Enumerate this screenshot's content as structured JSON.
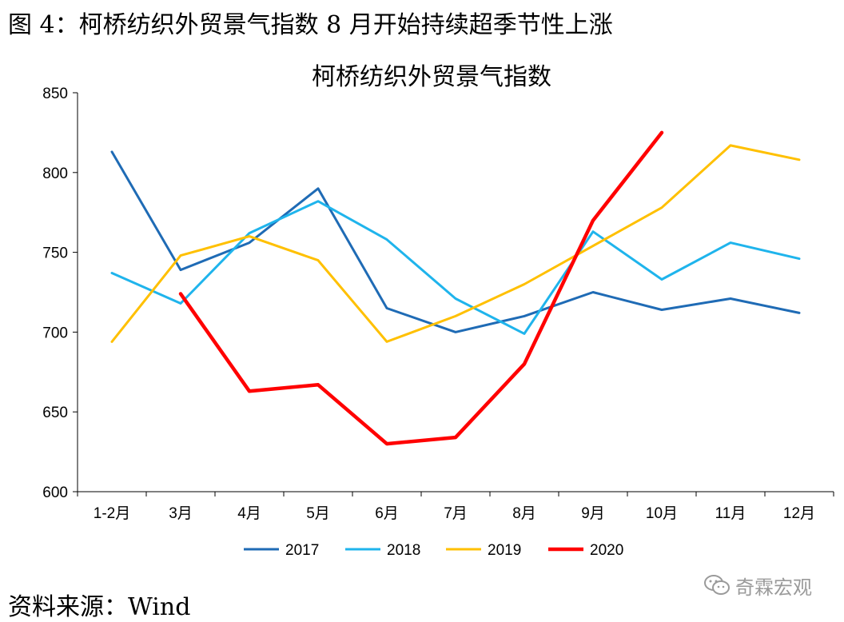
{
  "figure_title": "图 4：柯桥纺织外贸景气指数 8 月开始持续超季节性上涨",
  "source": "资料来源：Wind",
  "watermark": {
    "icon": "wechat-icon",
    "text": "奇霖宏观"
  },
  "chart_data": {
    "type": "line",
    "title": "柯桥纺织外贸景气指数",
    "xlabel": "",
    "ylabel": "",
    "ylim": [
      600,
      850
    ],
    "yticks": [
      600,
      650,
      700,
      750,
      800,
      850
    ],
    "grid": false,
    "legend_position": "bottom",
    "categories": [
      "1-2月",
      "3月",
      "4月",
      "5月",
      "6月",
      "7月",
      "8月",
      "9月",
      "10月",
      "11月",
      "12月"
    ],
    "series": [
      {
        "name": "2017",
        "color": "#1F6BB5",
        "values": [
          813,
          739,
          756,
          790,
          715,
          700,
          710,
          725,
          714,
          721,
          712
        ]
      },
      {
        "name": "2018",
        "color": "#1FB4EC",
        "values": [
          737,
          718,
          762,
          782,
          758,
          721,
          699,
          763,
          733,
          756,
          746
        ]
      },
      {
        "name": "2019",
        "color": "#FFC000",
        "values": [
          694,
          748,
          760,
          745,
          694,
          710,
          730,
          754,
          778,
          817,
          808
        ]
      },
      {
        "name": "2020",
        "color": "#FF0000",
        "values": [
          null,
          724,
          663,
          667,
          630,
          634,
          680,
          770,
          825,
          null,
          null
        ]
      }
    ]
  }
}
